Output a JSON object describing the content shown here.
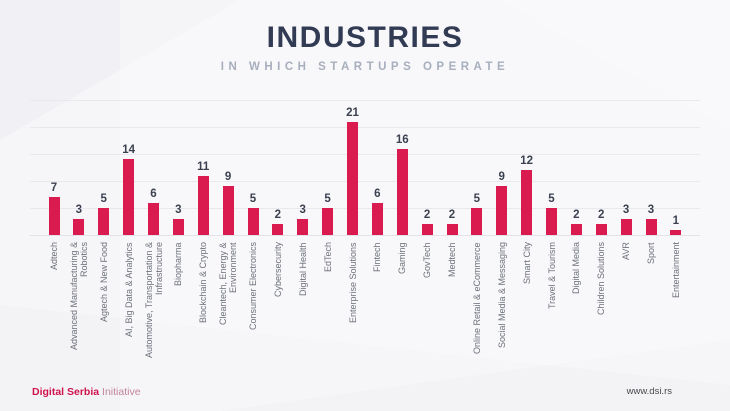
{
  "header": {
    "title": "INDUSTRIES",
    "subtitle": "IN WHICH STARTUPS OPERATE"
  },
  "chart_data": {
    "type": "bar",
    "title": "INDUSTRIES",
    "subtitle": "IN WHICH STARTUPS OPERATE",
    "categories": [
      "Adtech",
      "Advanced Manufacturing & Robotics",
      "Agtech & New Food",
      "AI, Big Data & Analytics",
      "Automotive, Transportation & Infrastructure",
      "Biopharma",
      "Blockchain & Crypto",
      "Cleantech, Energy & Environment",
      "Consumer Electronics",
      "Cybersecurity",
      "Digital Health",
      "EdTech",
      "Enterprise Solutions",
      "Fintech",
      "Gaming",
      "GovTech",
      "Medtech",
      "Online Retail & eCommerce",
      "Social Media & Messaging",
      "Smart City",
      "Travel & Tourism",
      "Digital Media",
      "Children Solutions",
      "AVR",
      "Sport",
      "Entertainment"
    ],
    "values": [
      7,
      3,
      5,
      14,
      6,
      3,
      11,
      9,
      5,
      2,
      3,
      5,
      21,
      6,
      16,
      2,
      2,
      5,
      9,
      12,
      5,
      2,
      2,
      3,
      3,
      1
    ],
    "xlabel": "",
    "ylabel": "",
    "ylim": [
      0,
      25
    ],
    "gridline_step": 5,
    "grid": true,
    "legend": false,
    "bar_color": "#d91b4f",
    "value_label_color": "#3c4150",
    "category_label_color": "#6e717c",
    "title_color": "#323b54",
    "subtitle_color": "#a7aebc"
  },
  "footer": {
    "logo_primary": "Digital Serbia",
    "logo_secondary": "Initiative",
    "website": "www.dsi.rs"
  }
}
